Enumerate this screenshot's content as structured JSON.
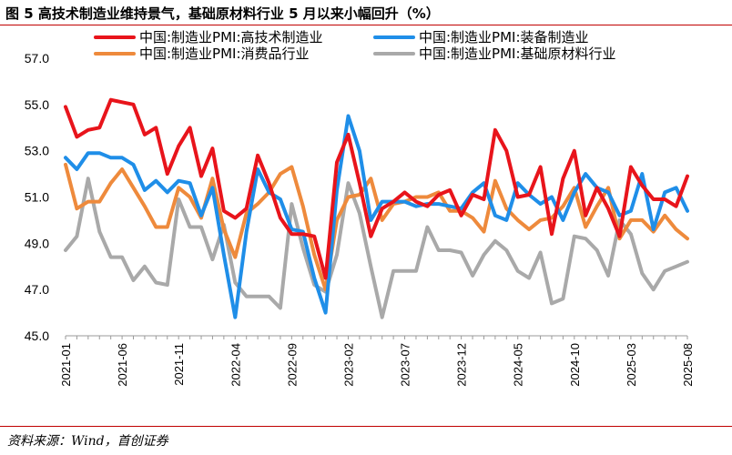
{
  "figure": {
    "title": "图 5  高技术制造业维持景气，基础原材料行业 5 月以来小幅回升（%）",
    "source": "资料来源：Wind，首创证券"
  },
  "colors": {
    "high_tech": "#e8141b",
    "equipment": "#1f8ee8",
    "consumer": "#ee8a3c",
    "raw_material": "#a9a9a9",
    "axis": "#9a9a9a",
    "rule": "#c00000"
  },
  "chart_data": {
    "type": "line",
    "title": "高技术制造业维持景气，基础原材料行业 5 月以来小幅回升（%）",
    "xlabel": "",
    "ylabel": "",
    "ylim": [
      45.0,
      57.0
    ],
    "yticks": [
      "45.0",
      "47.0",
      "49.0",
      "51.0",
      "53.0",
      "55.0",
      "57.0"
    ],
    "grid": false,
    "legend_position": "top",
    "x": [
      "2021-01",
      "2021-02",
      "2021-03",
      "2021-04",
      "2021-05",
      "2021-06",
      "2021-07",
      "2021-08",
      "2021-09",
      "2021-10",
      "2021-11",
      "2021-12",
      "2022-01",
      "2022-02",
      "2022-03",
      "2022-04",
      "2022-05",
      "2022-06",
      "2022-07",
      "2022-08",
      "2022-09",
      "2022-10",
      "2022-11",
      "2022-12",
      "2023-01",
      "2023-02",
      "2023-03",
      "2023-04",
      "2023-05",
      "2023-06",
      "2023-07",
      "2023-08",
      "2023-09",
      "2023-10",
      "2023-11",
      "2023-12",
      "2024-01",
      "2024-02",
      "2024-03",
      "2024-04",
      "2024-05",
      "2024-06",
      "2024-07",
      "2024-08",
      "2024-09",
      "2024-10",
      "2024-11",
      "2024-12",
      "2025-01",
      "2025-02",
      "2025-03",
      "2025-04",
      "2025-05",
      "2025-06",
      "2025-07",
      "2025-08"
    ],
    "xtick_labels": [
      "2021-01",
      "2021-06",
      "2021-11",
      "2022-04",
      "2022-09",
      "2023-02",
      "2023-07",
      "2023-12",
      "2024-05",
      "2024-10",
      "2025-03",
      "2025-08"
    ],
    "series": [
      {
        "key": "high_tech",
        "name": "中国:制造业PMI:高技术制造业",
        "values": [
          54.9,
          53.6,
          53.9,
          54.0,
          55.2,
          55.1,
          55.0,
          53.7,
          54.0,
          52.0,
          53.2,
          54.0,
          51.9,
          53.1,
          50.4,
          50.1,
          50.5,
          52.8,
          51.6,
          50.1,
          49.4,
          49.4,
          49.3,
          47.5,
          52.5,
          53.7,
          51.6,
          49.3,
          50.5,
          50.8,
          51.2,
          50.8,
          50.6,
          51.1,
          51.3,
          50.2,
          51.1,
          50.9,
          53.9,
          53.0,
          51.0,
          51.1,
          52.3,
          49.4,
          51.8,
          53.0,
          50.2,
          51.4,
          50.5,
          49.3,
          52.3,
          51.5,
          50.9,
          50.9,
          50.6,
          51.9
        ]
      },
      {
        "key": "equipment",
        "name": "中国:制造业PMI:装备制造业",
        "values": [
          52.7,
          52.2,
          52.9,
          52.9,
          52.7,
          52.7,
          52.4,
          51.3,
          51.7,
          51.2,
          51.7,
          51.6,
          50.2,
          51.4,
          48.5,
          45.8,
          49.5,
          52.2,
          51.2,
          50.9,
          49.6,
          49.5,
          47.5,
          46.0,
          51.3,
          54.5,
          53.0,
          50.0,
          50.8,
          50.8,
          50.8,
          50.6,
          50.7,
          50.7,
          50.6,
          50.5,
          51.2,
          51.6,
          50.2,
          50.0,
          51.6,
          51.1,
          50.7,
          51.0,
          50.0,
          51.2,
          52.0,
          51.4,
          51.2,
          50.2,
          50.4,
          52.0,
          49.6,
          51.2,
          51.4,
          50.4
        ]
      },
      {
        "key": "consumer",
        "name": "中国:制造业PMI:消费品行业",
        "values": [
          52.4,
          50.5,
          50.8,
          50.8,
          51.6,
          52.2,
          51.4,
          50.6,
          49.7,
          49.7,
          51.4,
          51.0,
          50.1,
          51.8,
          49.6,
          48.4,
          50.3,
          50.7,
          51.2,
          52.0,
          52.3,
          50.6,
          48.5,
          47.0,
          50.0,
          51.0,
          51.1,
          51.8,
          50.0,
          50.7,
          50.8,
          51.0,
          51.0,
          51.2,
          50.4,
          50.4,
          50.1,
          49.5,
          51.7,
          50.5,
          50.0,
          49.6,
          50.0,
          50.1,
          50.6,
          51.4,
          49.7,
          50.6,
          51.4,
          49.2,
          50.0,
          50.0,
          49.5,
          50.2,
          49.6,
          49.2
        ]
      },
      {
        "key": "raw_material",
        "name": "中国:制造业PMI:基础原材料行业",
        "values": [
          48.7,
          49.3,
          51.8,
          49.5,
          48.4,
          48.4,
          47.4,
          48.0,
          47.3,
          47.2,
          50.9,
          49.7,
          49.7,
          48.3,
          49.8,
          47.3,
          46.7,
          46.7,
          46.7,
          46.2,
          50.7,
          48.8,
          47.2,
          46.9,
          48.5,
          51.6,
          50.3,
          48.0,
          45.8,
          47.8,
          47.8,
          47.8,
          49.7,
          48.7,
          48.7,
          48.6,
          47.6,
          48.5,
          49.1,
          48.7,
          47.8,
          47.5,
          48.6,
          46.4,
          46.6,
          49.3,
          49.2,
          48.7,
          47.6,
          50.0,
          49.4,
          47.7,
          47.0,
          47.8,
          48.0,
          48.2
        ]
      }
    ]
  }
}
